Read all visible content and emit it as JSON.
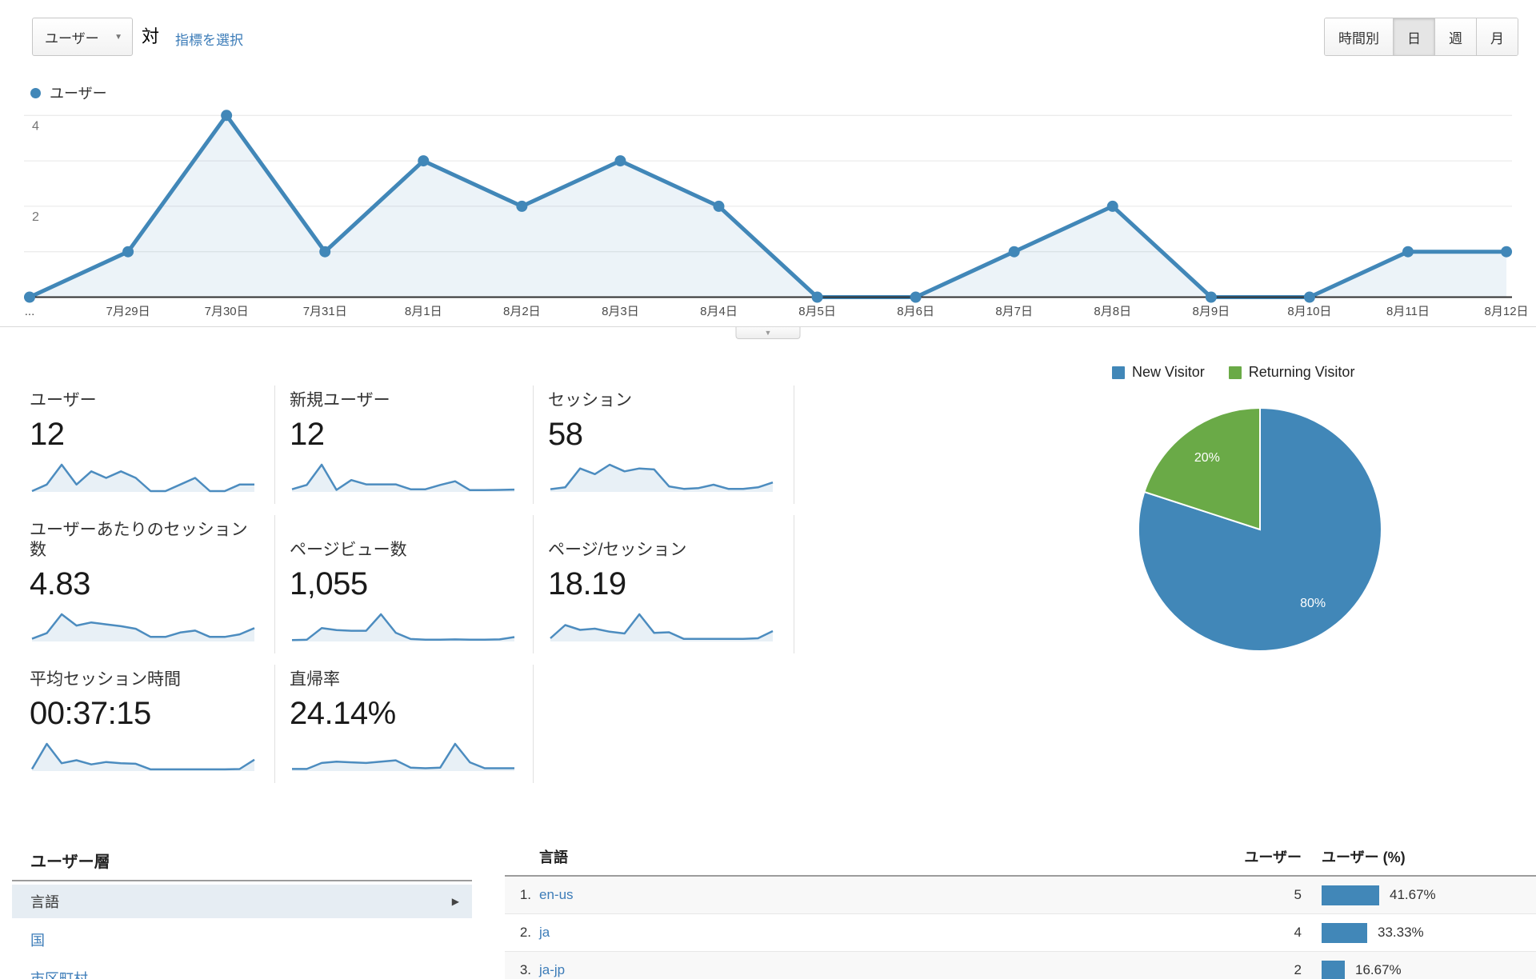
{
  "colors": {
    "chart_blue": "#4187b8",
    "spark_blue": "#4c8cbf",
    "pie_green": "#6aaa47",
    "link_blue": "#3c7cb8",
    "area_fill": "rgba(65,135,184,0.10)"
  },
  "controls": {
    "metric_selector": {
      "label": "ユーザー"
    },
    "vs_label": "対",
    "select_metric_link": "指標を選択",
    "granularity": [
      {
        "label": "時間別",
        "selected": false
      },
      {
        "label": "日",
        "selected": true
      },
      {
        "label": "週",
        "selected": false
      },
      {
        "label": "月",
        "selected": false
      }
    ]
  },
  "legend": {
    "label": "ユーザー"
  },
  "chart_data": [
    {
      "id": "users-by-day",
      "type": "area",
      "title": "ユーザー",
      "categories": [
        "...",
        "7月29日",
        "7月30日",
        "7月31日",
        "8月1日",
        "8月2日",
        "8月3日",
        "8月4日",
        "8月5日",
        "8月6日",
        "8月7日",
        "8月8日",
        "8月9日",
        "8月10日",
        "8月11日",
        "8月12日"
      ],
      "values": [
        0,
        1,
        4,
        1,
        3,
        2,
        3,
        2,
        0,
        0,
        1,
        2,
        0,
        0,
        1,
        1
      ],
      "ylim": [
        0,
        4.4
      ],
      "yticks": [
        2,
        4
      ],
      "gridline_values": [
        1,
        2,
        3,
        4
      ],
      "grid": true,
      "legend_position": "top-left"
    },
    {
      "id": "new-vs-returning",
      "type": "pie",
      "legend_position": "top",
      "series": [
        {
          "name": "New Visitor",
          "value": 80,
          "label": "80%",
          "color": "#4187b8"
        },
        {
          "name": "Returning Visitor",
          "value": 20,
          "label": "20%",
          "color": "#6aaa47"
        }
      ]
    },
    {
      "id": "metric-sparklines",
      "type": "line",
      "note": "relative daily shapes for the 8 summary-card sparklines",
      "categories": [
        "7月28日",
        "7月29日",
        "7月30日",
        "7月31日",
        "8月1日",
        "8月2日",
        "8月3日",
        "8月4日",
        "8月5日",
        "8月6日",
        "8月7日",
        "8月8日",
        "8月9日",
        "8月10日",
        "8月11日",
        "8月12日"
      ],
      "series": [
        {
          "name": "ユーザー",
          "values": [
            0,
            1,
            4,
            1,
            3,
            2,
            3,
            2,
            0,
            0,
            1,
            2,
            0,
            0,
            1,
            1
          ]
        },
        {
          "name": "新規ユーザー",
          "values": [
            0.3,
            1,
            4.3,
            0.2,
            1.8,
            1.1,
            1.1,
            1.1,
            0.3,
            0.3,
            1,
            1.6,
            0.15,
            0.15,
            0.2,
            0.25
          ]
        },
        {
          "name": "セッション",
          "values": [
            1,
            2,
            12,
            9,
            14,
            10.5,
            12,
            11.5,
            2.5,
            1.2,
            1.6,
            3.4,
            1.2,
            1.2,
            2,
            4.6
          ]
        },
        {
          "name": "ユーザーあたりのセッション数",
          "values": [
            0.3,
            1.2,
            4.2,
            2.4,
            2.9,
            2.6,
            2.3,
            1.9,
            0.6,
            0.6,
            1.3,
            1.6,
            0.6,
            0.6,
            1,
            2
          ]
        },
        {
          "name": "ページビュー数",
          "values": [
            8,
            15,
            190,
            160,
            150,
            150,
            400,
            120,
            25,
            15,
            15,
            20,
            15,
            15,
            20,
            55
          ]
        },
        {
          "name": "ページ/セッション",
          "values": [
            0.4,
            2.6,
            1.8,
            2,
            1.5,
            1.2,
            4.4,
            1.3,
            1.4,
            0.3,
            0.3,
            0.3,
            0.3,
            0.3,
            0.4,
            1.6
          ]
        },
        {
          "name": "平均セッション時間",
          "values": [
            0.2,
            4.5,
            1.2,
            1.7,
            1,
            1.4,
            1.2,
            1.1,
            0.15,
            0.15,
            0.15,
            0.15,
            0.15,
            0.15,
            0.2,
            1.8
          ]
        },
        {
          "name": "直帰率",
          "values": [
            0.2,
            0.2,
            1.1,
            1.3,
            1.2,
            1.1,
            1.3,
            1.5,
            0.4,
            0.3,
            0.4,
            4,
            1.2,
            0.3,
            0.3,
            0.3
          ]
        }
      ]
    }
  ],
  "summary_cards": {
    "rows": [
      [
        {
          "label": "ユーザー",
          "value": "12",
          "spark_index": 0
        },
        {
          "label": "新規ユーザー",
          "value": "12",
          "spark_index": 1
        },
        {
          "label": "セッション",
          "value": "58",
          "spark_index": 2
        }
      ],
      [
        {
          "label": "ユーザーあたりのセッション数",
          "value": "4.83",
          "spark_index": 3
        },
        {
          "label": "ページビュー数",
          "value": "1,055",
          "spark_index": 4
        },
        {
          "label": "ページ/セッション",
          "value": "18.19",
          "spark_index": 5
        }
      ],
      [
        {
          "label": "平均セッション時間",
          "value": "00:37:15",
          "spark_index": 6
        },
        {
          "label": "直帰率",
          "value": "24.14%",
          "spark_index": 7
        }
      ]
    ]
  },
  "timeline_expander": {
    "icon": "▼"
  },
  "demographics": {
    "title": "ユーザー層",
    "items": [
      {
        "label": "言語",
        "selected": true
      },
      {
        "label": "国",
        "selected": false
      },
      {
        "label": "市区町村",
        "selected": false
      }
    ]
  },
  "language_table": {
    "columns": {
      "language": "言語",
      "users": "ユーザー",
      "users_pct": "ユーザー (%)"
    },
    "rows": [
      {
        "rank": "1.",
        "language": "en-us",
        "users": "5",
        "pct": 41.67,
        "pct_label": "41.67%"
      },
      {
        "rank": "2.",
        "language": "ja",
        "users": "4",
        "pct": 33.33,
        "pct_label": "33.33%"
      },
      {
        "rank": "3.",
        "language": "ja-jp",
        "users": "2",
        "pct": 16.67,
        "pct_label": "16.67%"
      }
    ]
  }
}
